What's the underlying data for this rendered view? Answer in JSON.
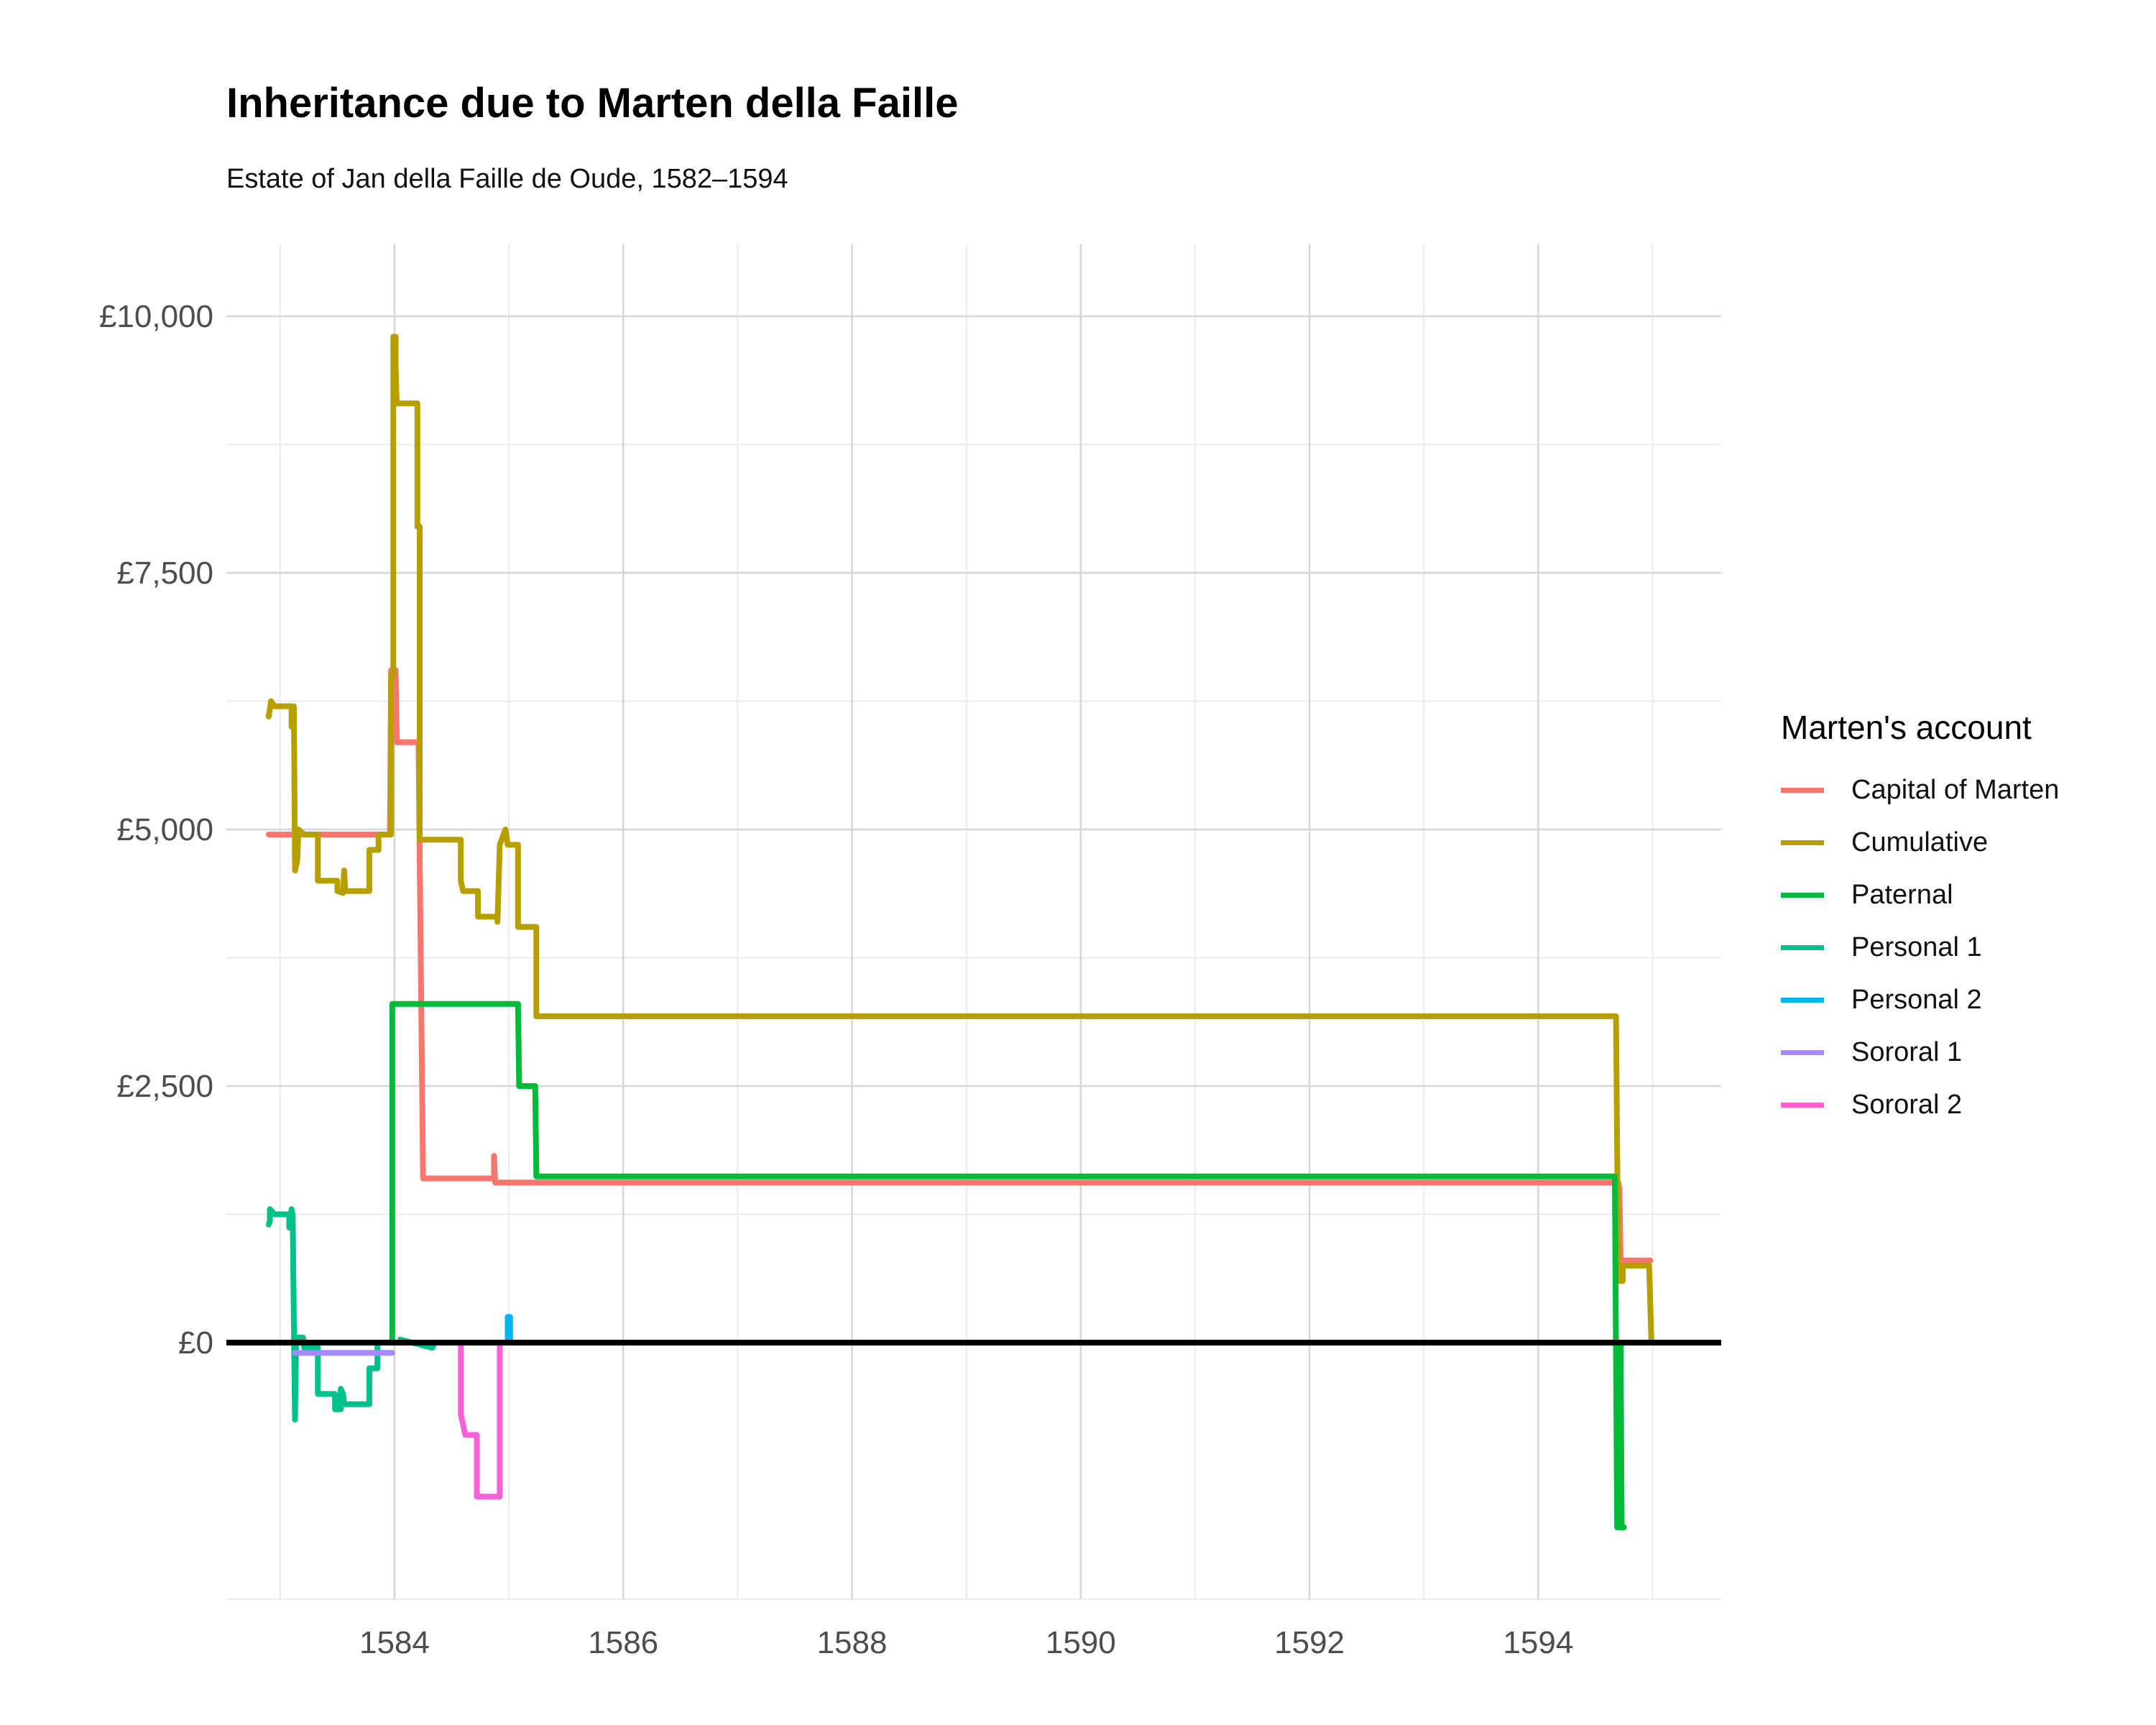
{
  "chart_data": {
    "type": "line",
    "title": "Inheritance due to Marten della Faille",
    "subtitle": "Estate of Jan della Faille de Oude, 1582–1594",
    "xlabel": "",
    "ylabel": "",
    "xlim": [
      1582.53,
      1595.6
    ],
    "ylim": [
      -2500,
      10700
    ],
    "x_ticks": [
      1584,
      1586,
      1588,
      1590,
      1592,
      1594
    ],
    "x_tick_labels": [
      "1584",
      "1586",
      "1588",
      "1590",
      "1592",
      "1594"
    ],
    "y_ticks": [
      0,
      2500,
      5000,
      7500,
      10000
    ],
    "y_tick_labels": [
      "£0",
      "£2,500",
      "£5,000",
      "£7,500",
      "£10,000"
    ],
    "minor_x": [
      1583,
      1585,
      1587,
      1589,
      1591,
      1593,
      1595
    ],
    "minor_y": [
      -2500,
      1250,
      3750,
      6250,
      8750
    ],
    "grid": true,
    "zero_line": true,
    "legend": {
      "title": "Marten's account",
      "position": "right"
    },
    "series": [
      {
        "name": "Capital of Marten",
        "color": "#f8766d",
        "points": [
          [
            1582.9,
            4950
          ],
          [
            1583.96,
            4950
          ],
          [
            1583.97,
            6550
          ],
          [
            1584.01,
            6550
          ],
          [
            1584.02,
            5850
          ],
          [
            1584.21,
            5850
          ],
          [
            1584.22,
            4700
          ],
          [
            1584.25,
            1600
          ],
          [
            1584.87,
            1600
          ],
          [
            1584.87,
            1820
          ],
          [
            1584.88,
            1560
          ],
          [
            1594.7,
            1560
          ],
          [
            1594.71,
            1500
          ],
          [
            1594.72,
            800
          ],
          [
            1594.98,
            800
          ]
        ]
      },
      {
        "name": "Cumulative",
        "color": "#b79f00",
        "points": [
          [
            1582.9,
            6100
          ],
          [
            1582.92,
            6250
          ],
          [
            1582.95,
            6200
          ],
          [
            1583.1,
            6200
          ],
          [
            1583.1,
            6000
          ],
          [
            1583.12,
            6200
          ],
          [
            1583.13,
            4600
          ],
          [
            1583.15,
            4700
          ],
          [
            1583.16,
            5000
          ],
          [
            1583.21,
            4950
          ],
          [
            1583.33,
            4950
          ],
          [
            1583.33,
            4500
          ],
          [
            1583.5,
            4500
          ],
          [
            1583.5,
            4400
          ],
          [
            1583.55,
            4380
          ],
          [
            1583.56,
            4600
          ],
          [
            1583.57,
            4400
          ],
          [
            1583.78,
            4400
          ],
          [
            1583.78,
            4800
          ],
          [
            1583.86,
            4800
          ],
          [
            1583.86,
            4950
          ],
          [
            1583.97,
            4950
          ],
          [
            1583.97,
            6500
          ],
          [
            1583.99,
            6500
          ],
          [
            1583.99,
            9800
          ],
          [
            1584.01,
            9800
          ],
          [
            1584.01,
            9500
          ],
          [
            1584.02,
            9150
          ],
          [
            1584.2,
            9150
          ],
          [
            1584.2,
            7950
          ],
          [
            1584.22,
            7950
          ],
          [
            1584.22,
            4900
          ],
          [
            1584.58,
            4900
          ],
          [
            1584.58,
            4500
          ],
          [
            1584.6,
            4400
          ],
          [
            1584.73,
            4400
          ],
          [
            1584.73,
            4150
          ],
          [
            1584.9,
            4150
          ],
          [
            1584.9,
            4100
          ],
          [
            1584.92,
            4850
          ],
          [
            1584.97,
            5000
          ],
          [
            1584.99,
            4850
          ],
          [
            1585.08,
            4850
          ],
          [
            1585.08,
            4050
          ],
          [
            1585.24,
            4050
          ],
          [
            1585.24,
            3180
          ],
          [
            1594.68,
            3180
          ],
          [
            1594.7,
            600
          ],
          [
            1594.74,
            600
          ],
          [
            1594.74,
            750
          ],
          [
            1594.97,
            750
          ],
          [
            1594.99,
            0
          ]
        ]
      },
      {
        "name": "Paternal",
        "color": "#00ba38",
        "points": [
          [
            1583.94,
            0
          ],
          [
            1583.98,
            0
          ],
          [
            1583.98,
            3300
          ],
          [
            1585.08,
            3300
          ],
          [
            1585.09,
            2500
          ],
          [
            1585.23,
            2500
          ],
          [
            1585.24,
            1620
          ],
          [
            1594.67,
            1620
          ],
          [
            1594.69,
            -1800
          ],
          [
            1594.7,
            0
          ],
          [
            1594.71,
            -1800
          ],
          [
            1594.72,
            0
          ],
          [
            1594.73,
            -1800
          ],
          [
            1594.75,
            -1800
          ]
        ]
      },
      {
        "name": "Personal 1",
        "color": "#00c08b",
        "points": [
          [
            1582.9,
            1150
          ],
          [
            1582.91,
            1180
          ],
          [
            1582.91,
            1300
          ],
          [
            1582.95,
            1250
          ],
          [
            1583.08,
            1250
          ],
          [
            1583.08,
            1120
          ],
          [
            1583.1,
            1300
          ],
          [
            1583.11,
            1240
          ],
          [
            1583.12,
            200
          ],
          [
            1583.13,
            -750
          ],
          [
            1583.14,
            50
          ],
          [
            1583.2,
            50
          ],
          [
            1583.21,
            -50
          ],
          [
            1583.33,
            -50
          ],
          [
            1583.33,
            -500
          ],
          [
            1583.48,
            -500
          ],
          [
            1583.48,
            -650
          ],
          [
            1583.53,
            -650
          ],
          [
            1583.53,
            -450
          ],
          [
            1583.55,
            -500
          ],
          [
            1583.56,
            -600
          ],
          [
            1583.78,
            -600
          ],
          [
            1583.78,
            -250
          ],
          [
            1583.85,
            -250
          ],
          [
            1583.85,
            0
          ],
          [
            1584.02,
            0
          ],
          [
            1584.05,
            0
          ],
          [
            1584.05,
            30
          ],
          [
            1584.33,
            -50
          ],
          [
            1584.35,
            0
          ]
        ]
      },
      {
        "name": "Personal 2",
        "color": "#00b4f0",
        "points": [
          [
            1584.98,
            0
          ],
          [
            1584.99,
            0
          ],
          [
            1584.99,
            250
          ],
          [
            1585.01,
            250
          ],
          [
            1585.01,
            0
          ],
          [
            1585.03,
            0
          ]
        ]
      },
      {
        "name": "Sororal 1",
        "color": "#a58aff",
        "points": [
          [
            1583.13,
            -100
          ],
          [
            1583.98,
            -100
          ]
        ]
      },
      {
        "name": "Sororal 2",
        "color": "#fb61d7",
        "points": [
          [
            1584.57,
            0
          ],
          [
            1584.58,
            0
          ],
          [
            1584.58,
            -700
          ],
          [
            1584.62,
            -900
          ],
          [
            1584.72,
            -900
          ],
          [
            1584.72,
            -1500
          ],
          [
            1584.92,
            -1500
          ],
          [
            1584.92,
            0
          ]
        ]
      }
    ]
  }
}
